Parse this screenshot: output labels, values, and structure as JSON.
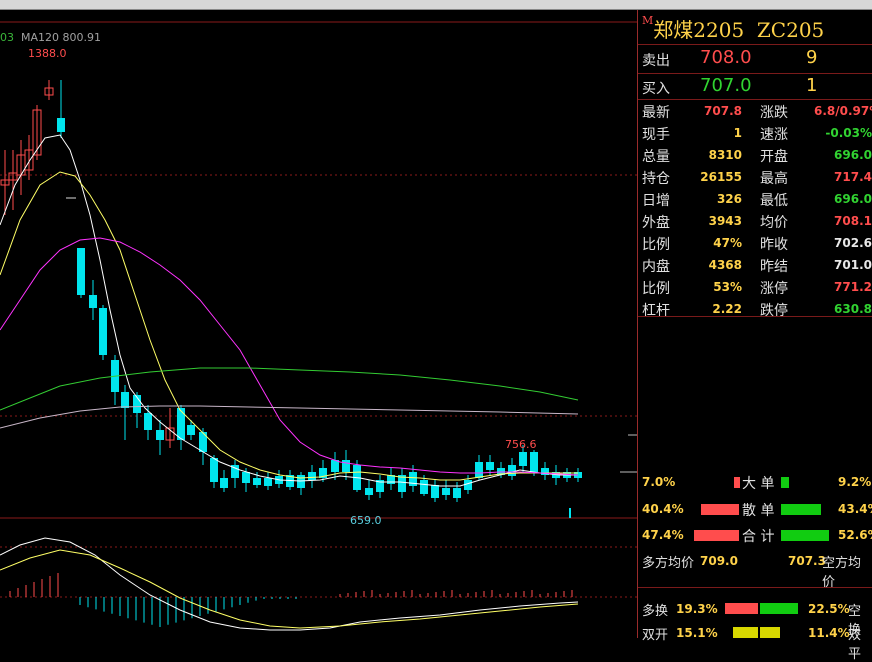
{
  "ma_legend": {
    "prefix": "03",
    "ma120": "MA120 800.91"
  },
  "price_labels": {
    "high": "1388.0",
    "low": "659.0",
    "peak2": "756.6"
  },
  "instrument": {
    "marker": "M",
    "name": "郑煤2205",
    "code": "ZC205"
  },
  "quote": {
    "ask_label": "卖出",
    "ask_price": "708.0",
    "ask_vol": "9",
    "bid_label": "买入",
    "bid_price": "707.0",
    "bid_vol": "1"
  },
  "stats": [
    {
      "l": "最新",
      "v": "707.8",
      "vc": "red",
      "l2": "涨跌",
      "v2": "6.8/0.97%",
      "v2c": "red"
    },
    {
      "l": "现手",
      "v": "1",
      "vc": "yellow",
      "l2": "速涨",
      "v2": "-0.03%",
      "v2c": "green"
    },
    {
      "l": "总量",
      "v": "8310",
      "vc": "yellow",
      "l2": "开盘",
      "v2": "696.0",
      "v2c": "green"
    },
    {
      "l": "持仓",
      "v": "26155",
      "vc": "yellow",
      "l2": "最高",
      "v2": "717.4",
      "v2c": "red"
    },
    {
      "l": "日增",
      "v": "326",
      "vc": "yellow",
      "l2": "最低",
      "v2": "696.0",
      "v2c": "green"
    },
    {
      "l": "外盘",
      "v": "3943",
      "vc": "yellow",
      "l2": "均价",
      "v2": "708.1",
      "v2c": "red"
    },
    {
      "l": "比例",
      "v": "47%",
      "vc": "yellow",
      "l2": "昨收",
      "v2": "702.6",
      "v2c": "white"
    },
    {
      "l": "内盘",
      "v": "4368",
      "vc": "yellow",
      "l2": "昨结",
      "v2": "701.0",
      "v2c": "white"
    },
    {
      "l": "比例",
      "v": "53%",
      "vc": "yellow",
      "l2": "涨停",
      "v2": "771.2",
      "v2c": "red"
    },
    {
      "l": "杠杆",
      "v": "2.22",
      "vc": "yellow",
      "l2": "跌停",
      "v2": "630.8",
      "v2c": "green"
    }
  ],
  "flow": {
    "big_left": "7.0%",
    "big_label": "大 单",
    "big_right": "9.2%",
    "small_left": "40.4%",
    "small_label": "散 单",
    "small_right": "43.4%",
    "total_left": "47.4%",
    "total_label": "合 计",
    "total_right": "52.6%",
    "long_avg_label": "多方均价",
    "long_avg": "709.0",
    "short_avg": "707.3",
    "short_avg_label": "空方均价"
  },
  "positions": {
    "dh_label": "多换",
    "dh_left": "19.3%",
    "dh_right": "22.5%",
    "kh_label": "空换",
    "sk_label": "双开",
    "sk_left": "15.1%",
    "sk_right": "11.4%",
    "sp_label": "双平"
  },
  "colors": {
    "up": "#ff4d4d",
    "down": "#00e5ee",
    "ma_white": "#ffffff",
    "ma_yellow": "#ffff66",
    "ma_magenta": "#ff33ff",
    "ma_green": "#33cc33",
    "ma_grey": "#c8b6c8"
  }
}
